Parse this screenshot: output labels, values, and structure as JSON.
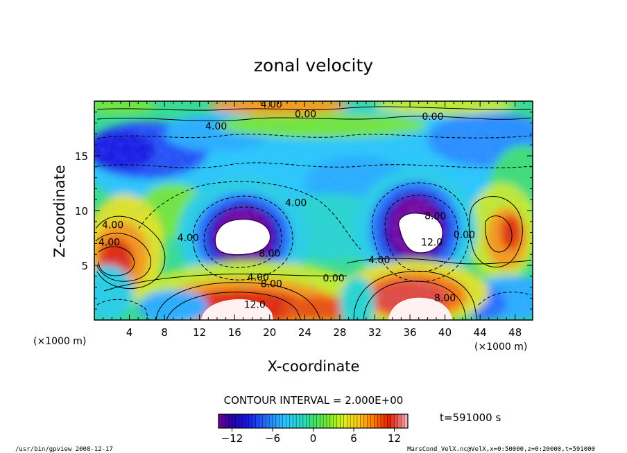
{
  "chart_data": {
    "type": "heatmap",
    "title": "zonal velocity",
    "xlabel": "X-coordinate",
    "ylabel": "Z-coordinate",
    "x_units_left": "(×1000 m)",
    "x_units_right": "(×1000 m)",
    "xlim": [
      0,
      50
    ],
    "ylim": [
      0,
      20
    ],
    "x_ticks": [
      4,
      8,
      12,
      16,
      20,
      24,
      28,
      32,
      36,
      40,
      44,
      48
    ],
    "y_ticks": [
      5,
      10,
      15
    ],
    "contour_interval_text": "CONTOUR INTERVAL = 2.000E+00",
    "time_text": "t=591000 s",
    "colorbar": {
      "range": [
        -14,
        14
      ],
      "ticks": [
        -12,
        -6,
        0,
        6,
        12
      ]
    },
    "contour_labels": [
      {
        "text": "4.00",
        "x": 20.2,
        "z": 19.4
      },
      {
        "text": "0.00",
        "x": 24.1,
        "z": 18.5
      },
      {
        "text": "0.00",
        "x": 38.6,
        "z": 18.3
      },
      {
        "text": "4.00",
        "x": 13.9,
        "z": 17.4
      },
      {
        "text": "4.00",
        "x": 23.0,
        "z": 10.4
      },
      {
        "text": "4.00",
        "x": 2.1,
        "z": 8.4
      },
      {
        "text": "4.00",
        "x": 1.7,
        "z": 6.8
      },
      {
        "text": "4.00",
        "x": 10.7,
        "z": 7.2
      },
      {
        "text": "8.00",
        "x": 20.0,
        "z": 5.8
      },
      {
        "text": "8.00",
        "x": 38.9,
        "z": 9.2
      },
      {
        "text": "12.0",
        "x": 38.5,
        "z": 6.8
      },
      {
        "text": "0.00",
        "x": 42.2,
        "z": 7.5
      },
      {
        "text": "4.00",
        "x": 32.5,
        "z": 5.2
      },
      {
        "text": "4.00",
        "x": 18.7,
        "z": 3.6
      },
      {
        "text": "8.00",
        "x": 20.2,
        "z": 3.0
      },
      {
        "text": "0.00",
        "x": 27.3,
        "z": 3.5
      },
      {
        "text": "12.0",
        "x": 18.3,
        "z": 1.1
      },
      {
        "text": "8.00",
        "x": 40.0,
        "z": 1.7
      }
    ],
    "regions": [
      {
        "label": "strong negative (white core)",
        "x": 17.0,
        "z": 7.5,
        "peak": -16
      },
      {
        "label": "strong negative (white core)",
        "x": 36.5,
        "z": 8.2,
        "peak": -16
      },
      {
        "label": "positive jet lower left",
        "x": 3.0,
        "z": 5.5,
        "peak": 10
      },
      {
        "label": "positive jet (white core)",
        "x": 17.0,
        "z": 1.5,
        "peak": 16
      },
      {
        "label": "positive jet (white core)",
        "x": 37.0,
        "z": 1.5,
        "peak": 16
      },
      {
        "label": "positive right",
        "x": 46.5,
        "z": 7.5,
        "peak": 9
      }
    ]
  },
  "footer": {
    "left": "/usr/bin/gpview  2008-12-17",
    "right": "MarsCond_VelX.nc@VelX,x=0:50000,z=0:20000,t=591000"
  }
}
